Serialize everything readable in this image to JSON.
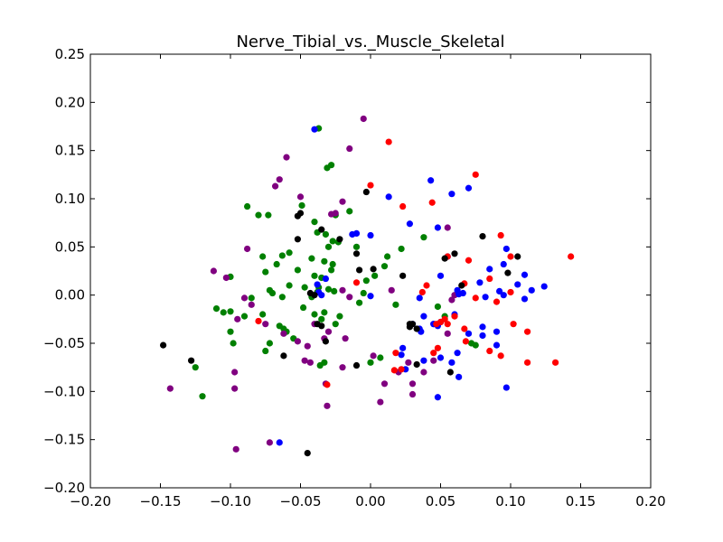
{
  "chart_data": {
    "type": "scatter",
    "title": "Nerve_Tibial_vs._Muscle_Skeletal",
    "xlabel": "",
    "ylabel": "",
    "xlim": [
      -0.2,
      0.2
    ],
    "ylim": [
      -0.2,
      0.25
    ],
    "xticks": [
      -0.2,
      -0.15,
      -0.1,
      -0.05,
      0.0,
      0.05,
      0.1,
      0.15,
      0.2
    ],
    "yticks": [
      -0.2,
      -0.15,
      -0.1,
      -0.05,
      0.0,
      0.05,
      0.1,
      0.15,
      0.2,
      0.25
    ],
    "xtick_labels": [
      "−0.20",
      "−0.15",
      "−0.10",
      "−0.05",
      "0.00",
      "0.05",
      "0.10",
      "0.15",
      "0.20"
    ],
    "ytick_labels": [
      "−0.20",
      "−0.15",
      "−0.10",
      "−0.05",
      "0.00",
      "0.05",
      "0.10",
      "0.15",
      "0.20",
      "0.25"
    ],
    "grid": false,
    "legend": "none",
    "series": [
      {
        "color": "#008000",
        "points": [
          [
            -0.037,
            0.173
          ],
          [
            -0.028,
            0.135
          ],
          [
            -0.031,
            0.132
          ],
          [
            -0.015,
            0.087
          ],
          [
            -0.025,
            0.083
          ],
          [
            -0.049,
            0.093
          ],
          [
            -0.088,
            0.092
          ],
          [
            -0.08,
            0.083
          ],
          [
            -0.073,
            0.083
          ],
          [
            -0.04,
            0.076
          ],
          [
            -0.038,
            0.065
          ],
          [
            -0.032,
            0.063
          ],
          [
            -0.027,
            0.056
          ],
          [
            -0.023,
            0.055
          ],
          [
            -0.03,
            0.05
          ],
          [
            -0.058,
            0.044
          ],
          [
            -0.063,
            0.041
          ],
          [
            -0.077,
            0.04
          ],
          [
            -0.01,
            0.05
          ],
          [
            -0.042,
            0.038
          ],
          [
            -0.033,
            0.035
          ],
          [
            -0.027,
            0.032
          ],
          [
            -0.052,
            0.026
          ],
          [
            -0.067,
            0.032
          ],
          [
            -0.075,
            0.024
          ],
          [
            -0.1,
            0.019
          ],
          [
            -0.04,
            0.02
          ],
          [
            -0.035,
            0.018
          ],
          [
            -0.028,
            0.026
          ],
          [
            -0.047,
            0.008
          ],
          [
            -0.058,
            0.01
          ],
          [
            -0.072,
            0.005
          ],
          [
            -0.07,
            0.002
          ],
          [
            -0.085,
            -0.003
          ],
          [
            -0.063,
            -0.002
          ],
          [
            -0.037,
            0.008
          ],
          [
            -0.03,
            0.006
          ],
          [
            -0.026,
            0.004
          ],
          [
            -0.038,
            0.003
          ],
          [
            -0.042,
            -0.002
          ],
          [
            -0.048,
            -0.013
          ],
          [
            -0.04,
            -0.02
          ],
          [
            -0.033,
            -0.018
          ],
          [
            -0.035,
            -0.025
          ],
          [
            -0.022,
            -0.022
          ],
          [
            -0.025,
            -0.03
          ],
          [
            -0.1,
            -0.017
          ],
          [
            -0.105,
            -0.018
          ],
          [
            -0.11,
            -0.014
          ],
          [
            -0.09,
            -0.022
          ],
          [
            -0.077,
            -0.02
          ],
          [
            -0.065,
            -0.032
          ],
          [
            -0.062,
            -0.035
          ],
          [
            -0.055,
            -0.045
          ],
          [
            -0.06,
            -0.038
          ],
          [
            -0.072,
            -0.05
          ],
          [
            -0.075,
            -0.058
          ],
          [
            -0.1,
            -0.038
          ],
          [
            -0.098,
            -0.05
          ],
          [
            -0.12,
            -0.105
          ],
          [
            -0.125,
            -0.075
          ],
          [
            -0.033,
            -0.07
          ],
          [
            -0.036,
            -0.073
          ],
          [
            -0.005,
            0.002
          ],
          [
            -0.003,
            0.015
          ],
          [
            0.01,
            0.03
          ],
          [
            0.012,
            0.04
          ],
          [
            0.022,
            0.048
          ],
          [
            0.038,
            0.06
          ],
          [
            0.048,
            -0.012
          ],
          [
            0.053,
            -0.022
          ],
          [
            0.072,
            -0.05
          ],
          [
            0.075,
            -0.052
          ],
          [
            0.0,
            -0.07
          ],
          [
            0.007,
            -0.065
          ],
          [
            0.018,
            -0.01
          ],
          [
            -0.008,
            -0.008
          ],
          [
            0.003,
            0.02
          ]
        ]
      },
      {
        "color": "#800080",
        "points": [
          [
            -0.005,
            0.183
          ],
          [
            -0.015,
            0.152
          ],
          [
            -0.06,
            0.143
          ],
          [
            -0.065,
            0.12
          ],
          [
            -0.068,
            0.113
          ],
          [
            -0.05,
            0.102
          ],
          [
            -0.02,
            0.097
          ],
          [
            -0.025,
            0.085
          ],
          [
            -0.088,
            0.048
          ],
          [
            -0.112,
            0.025
          ],
          [
            -0.103,
            0.018
          ],
          [
            -0.09,
            -0.003
          ],
          [
            -0.085,
            -0.01
          ],
          [
            -0.095,
            -0.025
          ],
          [
            -0.075,
            -0.03
          ],
          [
            -0.062,
            -0.04
          ],
          [
            -0.052,
            -0.048
          ],
          [
            -0.045,
            -0.053
          ],
          [
            -0.047,
            -0.068
          ],
          [
            -0.043,
            -0.07
          ],
          [
            -0.033,
            -0.045
          ],
          [
            -0.03,
            -0.038
          ],
          [
            -0.018,
            -0.045
          ],
          [
            -0.097,
            -0.08
          ],
          [
            -0.097,
            -0.097
          ],
          [
            -0.143,
            -0.097
          ],
          [
            -0.096,
            -0.16
          ],
          [
            -0.072,
            -0.153
          ],
          [
            -0.032,
            -0.092
          ],
          [
            -0.031,
            -0.115
          ],
          [
            -0.02,
            -0.075
          ],
          [
            0.007,
            -0.111
          ],
          [
            0.01,
            -0.092
          ],
          [
            0.03,
            -0.103
          ],
          [
            0.03,
            -0.092
          ],
          [
            0.02,
            -0.08
          ],
          [
            0.038,
            -0.08
          ],
          [
            0.027,
            -0.07
          ],
          [
            0.045,
            -0.068
          ],
          [
            0.055,
            -0.04
          ],
          [
            0.06,
            0.0
          ],
          [
            0.058,
            -0.005
          ],
          [
            0.055,
            0.07
          ],
          [
            0.045,
            -0.03
          ],
          [
            0.015,
            0.005
          ],
          [
            -0.015,
            -0.002
          ],
          [
            -0.028,
            0.084
          ],
          [
            -0.02,
            0.005
          ],
          [
            -0.04,
            -0.03
          ],
          [
            0.002,
            -0.063
          ]
        ]
      },
      {
        "color": "#0000ff",
        "points": [
          [
            -0.04,
            0.172
          ],
          [
            0.043,
            0.119
          ],
          [
            0.07,
            0.111
          ],
          [
            0.058,
            0.105
          ],
          [
            0.013,
            0.102
          ],
          [
            0.028,
            0.074
          ],
          [
            0.048,
            0.07
          ],
          [
            0.0,
            0.062
          ],
          [
            -0.013,
            0.063
          ],
          [
            -0.01,
            0.064
          ],
          [
            0.097,
            0.048
          ],
          [
            0.055,
            0.04
          ],
          [
            0.095,
            0.032
          ],
          [
            0.085,
            0.027
          ],
          [
            0.11,
            0.021
          ],
          [
            0.05,
            0.02
          ],
          [
            0.078,
            0.013
          ],
          [
            0.105,
            0.011
          ],
          [
            0.115,
            0.005
          ],
          [
            0.124,
            0.009
          ],
          [
            0.062,
            0.005
          ],
          [
            0.063,
            0.001
          ],
          [
            0.066,
            0.002
          ],
          [
            0.092,
            0.004
          ],
          [
            0.095,
            0.0
          ],
          [
            0.11,
            -0.004
          ],
          [
            0.082,
            -0.002
          ],
          [
            0.035,
            -0.003
          ],
          [
            0.0,
            -0.001
          ],
          [
            -0.035,
            0.0
          ],
          [
            -0.037,
            0.003
          ],
          [
            -0.032,
            0.017
          ],
          [
            -0.038,
            0.011
          ],
          [
            0.06,
            -0.02
          ],
          [
            0.038,
            -0.022
          ],
          [
            0.045,
            -0.03
          ],
          [
            0.048,
            -0.032
          ],
          [
            0.035,
            -0.035
          ],
          [
            0.036,
            -0.038
          ],
          [
            0.08,
            -0.033
          ],
          [
            0.09,
            -0.038
          ],
          [
            0.062,
            -0.06
          ],
          [
            0.07,
            -0.04
          ],
          [
            0.08,
            -0.042
          ],
          [
            0.09,
            -0.052
          ],
          [
            0.058,
            -0.07
          ],
          [
            0.05,
            -0.065
          ],
          [
            0.038,
            -0.068
          ],
          [
            0.023,
            -0.055
          ],
          [
            0.022,
            -0.062
          ],
          [
            0.025,
            -0.077
          ],
          [
            0.063,
            -0.085
          ],
          [
            0.048,
            -0.106
          ],
          [
            0.097,
            -0.096
          ],
          [
            -0.065,
            -0.153
          ],
          [
            0.05,
            -0.028
          ],
          [
            0.03,
            -0.03
          ]
        ]
      },
      {
        "color": "#ff0000",
        "points": [
          [
            0.013,
            0.159
          ],
          [
            0.075,
            0.125
          ],
          [
            0.0,
            0.114
          ],
          [
            0.044,
            0.096
          ],
          [
            0.023,
            0.092
          ],
          [
            0.093,
            0.062
          ],
          [
            0.1,
            0.04
          ],
          [
            0.143,
            0.04
          ],
          [
            0.07,
            0.036
          ],
          [
            0.055,
            0.04
          ],
          [
            0.085,
            0.017
          ],
          [
            0.067,
            0.012
          ],
          [
            0.04,
            0.01
          ],
          [
            0.037,
            0.003
          ],
          [
            -0.01,
            0.013
          ],
          [
            0.075,
            -0.003
          ],
          [
            0.1,
            0.003
          ],
          [
            0.09,
            -0.007
          ],
          [
            0.06,
            -0.022
          ],
          [
            0.05,
            -0.028
          ],
          [
            0.053,
            -0.025
          ],
          [
            0.047,
            -0.03
          ],
          [
            0.055,
            -0.03
          ],
          [
            0.067,
            -0.035
          ],
          [
            0.102,
            -0.03
          ],
          [
            0.112,
            -0.038
          ],
          [
            0.085,
            -0.058
          ],
          [
            0.068,
            -0.048
          ],
          [
            0.045,
            -0.06
          ],
          [
            0.048,
            -0.055
          ],
          [
            0.018,
            -0.06
          ],
          [
            0.017,
            -0.078
          ],
          [
            0.022,
            -0.077
          ],
          [
            0.093,
            -0.063
          ],
          [
            0.112,
            -0.07
          ],
          [
            0.132,
            -0.07
          ],
          [
            -0.031,
            -0.093
          ],
          [
            -0.08,
            -0.027
          ]
        ]
      },
      {
        "color": "#000000",
        "points": [
          [
            -0.003,
            0.107
          ],
          [
            -0.05,
            0.085
          ],
          [
            -0.052,
            0.082
          ],
          [
            -0.035,
            0.068
          ],
          [
            -0.052,
            0.058
          ],
          [
            -0.01,
            0.043
          ],
          [
            -0.022,
            0.058
          ],
          [
            0.08,
            0.061
          ],
          [
            0.06,
            0.043
          ],
          [
            0.053,
            0.038
          ],
          [
            0.098,
            0.023
          ],
          [
            0.105,
            0.04
          ],
          [
            0.065,
            0.01
          ],
          [
            0.023,
            0.02
          ],
          [
            -0.008,
            0.026
          ],
          [
            0.002,
            0.027
          ],
          [
            -0.04,
            0.0
          ],
          [
            -0.043,
            0.002
          ],
          [
            -0.038,
            -0.03
          ],
          [
            -0.035,
            -0.032
          ],
          [
            -0.032,
            -0.048
          ],
          [
            0.028,
            -0.03
          ],
          [
            0.03,
            -0.03
          ],
          [
            0.028,
            -0.033
          ],
          [
            0.033,
            -0.035
          ],
          [
            -0.062,
            -0.063
          ],
          [
            -0.01,
            -0.073
          ],
          [
            0.033,
            -0.072
          ],
          [
            0.057,
            -0.08
          ],
          [
            -0.128,
            -0.068
          ],
          [
            -0.148,
            -0.052
          ],
          [
            -0.045,
            -0.164
          ]
        ]
      }
    ]
  }
}
